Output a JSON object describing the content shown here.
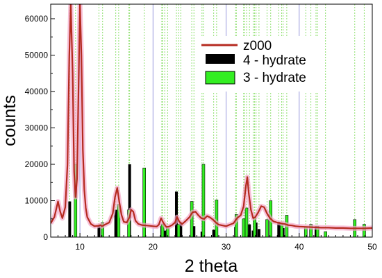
{
  "chart_data": {
    "type": "line",
    "title": "",
    "xlabel": "2 theta",
    "ylabel": "counts",
    "xlim": [
      6,
      50
    ],
    "ylim": [
      0,
      64000
    ],
    "x_ticks": [
      10,
      20,
      30,
      40,
      50
    ],
    "y_ticks": [
      0,
      10000,
      20000,
      30000,
      40000,
      50000,
      60000
    ],
    "legend_position": "top-right",
    "colors": {
      "z000": "#b52a1f",
      "z000_glow": "#f4a6c8",
      "hydrate4": "#000000",
      "hydrate3": "#33ee22",
      "ref_line": "#8fe070",
      "ref_line_blue": "#9999dd"
    },
    "series": [
      {
        "name": "z000",
        "kind": "line",
        "x": [
          6.0,
          6.5,
          7.0,
          7.3,
          7.6,
          8.0,
          8.3,
          8.55,
          8.75,
          9.0,
          9.2,
          9.4,
          9.6,
          9.8,
          10.0,
          10.2,
          10.4,
          10.6,
          10.8,
          11.0,
          11.5,
          12.0,
          12.5,
          12.8,
          13.0,
          13.5,
          14.0,
          14.5,
          14.8,
          15.1,
          15.4,
          15.7,
          16.0,
          16.4,
          16.8,
          17.0,
          17.3,
          17.6,
          18.0,
          18.5,
          19.0,
          19.5,
          20.0,
          20.5,
          20.8,
          21.1,
          21.4,
          21.8,
          22.2,
          22.6,
          23.0,
          23.3,
          23.6,
          24.0,
          24.5,
          25.0,
          25.4,
          25.8,
          26.2,
          26.6,
          27.0,
          27.4,
          27.8,
          28.2,
          28.6,
          29.0,
          29.5,
          30.0,
          30.5,
          31.0,
          31.5,
          32.0,
          32.4,
          32.7,
          32.9,
          33.1,
          33.4,
          33.7,
          34.0,
          34.4,
          34.8,
          35.2,
          35.6,
          36.0,
          36.5,
          37.0,
          37.5,
          38.0,
          38.5,
          39.0,
          39.5,
          40.0,
          41.0,
          42.0,
          43.0,
          44.0,
          45.0,
          46.0,
          47.0,
          48.0,
          49.0,
          50.0
        ],
        "y": [
          3800,
          5500,
          9800,
          7000,
          5200,
          8200,
          20000,
          50000,
          64000,
          45000,
          18000,
          11000,
          16000,
          40000,
          64000,
          50000,
          24000,
          13000,
          8000,
          5500,
          3600,
          3000,
          3100,
          3300,
          3000,
          3500,
          4000,
          6500,
          11000,
          13500,
          9500,
          6000,
          4200,
          4000,
          5500,
          7500,
          7000,
          4500,
          3600,
          3300,
          3200,
          3100,
          3000,
          2900,
          3400,
          5200,
          4000,
          2800,
          2900,
          3300,
          4000,
          5500,
          4200,
          3600,
          4500,
          5500,
          6800,
          7000,
          6000,
          5200,
          5000,
          5800,
          5400,
          4800,
          4000,
          3400,
          3200,
          3000,
          3400,
          3800,
          5200,
          6000,
          8500,
          14000,
          16500,
          12000,
          7500,
          5200,
          5500,
          6800,
          8500,
          8200,
          6500,
          5200,
          4300,
          4000,
          3800,
          3600,
          3300,
          3200,
          3000,
          2900,
          2800,
          2700,
          2600,
          2600,
          2500,
          2500,
          2400,
          2400,
          2400,
          2500
        ]
      },
      {
        "name": "4 - hydrate",
        "kind": "bar",
        "x": [
          8.6,
          12.6,
          14.9,
          16.8,
          21.2,
          21.6,
          23.2,
          23.8,
          25.6,
          26.7,
          28.3,
          31.3,
          32.5,
          33.2,
          33.7,
          34.1,
          34.5,
          37.2,
          37.8,
          42.3
        ],
        "y": [
          9800,
          3200,
          7500,
          20000,
          3000,
          1800,
          12500,
          4000,
          3000,
          1500,
          2000,
          2800,
          4500,
          3500,
          1800,
          4000,
          2200,
          4200,
          2500,
          3000
        ]
      },
      {
        "name": "3 - hydrate",
        "kind": "bar",
        "x": [
          9.4,
          13.1,
          15.3,
          16.7,
          18.8,
          21.3,
          22.0,
          23.5,
          25.3,
          26.9,
          28.7,
          31.4,
          32.4,
          32.8,
          33.9,
          35.6,
          36.1,
          37.6,
          38.3,
          40.9,
          41.6,
          42.5,
          43.6,
          47.6,
          48.9
        ],
        "y": [
          20000,
          4000,
          9000,
          7500,
          19000,
          3500,
          2500,
          3500,
          9800,
          20000,
          10200,
          6200,
          5000,
          8000,
          5500,
          4800,
          10000,
          3500,
          6000,
          2800,
          3500,
          3000,
          1500,
          4800,
          3500
        ]
      }
    ]
  }
}
